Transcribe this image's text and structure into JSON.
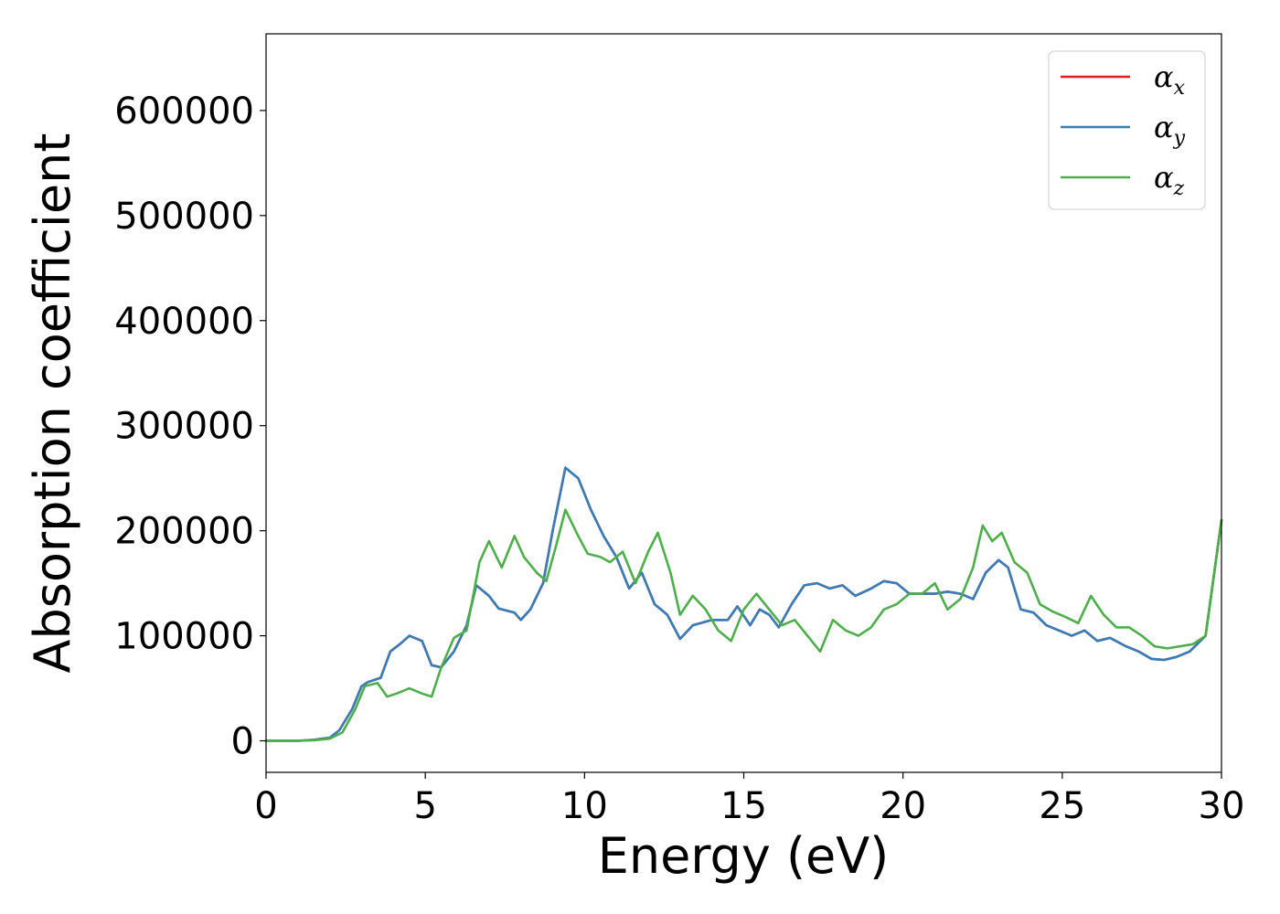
{
  "chart_data": {
    "type": "line",
    "xlabel": "Energy (eV)",
    "ylabel": "Absorption coefficient",
    "xlim": [
      0,
      30
    ],
    "ylim": [
      -30000,
      673000
    ],
    "xticks": [
      0,
      5,
      10,
      15,
      20,
      25,
      30
    ],
    "yticks": [
      0,
      100000,
      200000,
      300000,
      400000,
      500000,
      600000
    ],
    "xtick_labels": [
      "0",
      "5",
      "10",
      "15",
      "20",
      "25",
      "30"
    ],
    "ytick_labels": [
      "0",
      "100000",
      "200000",
      "300000",
      "400000",
      "500000",
      "600000"
    ],
    "grid": false,
    "legend": {
      "position": "top-right",
      "entries": [
        {
          "symbol": "α",
          "subscript": "x"
        },
        {
          "symbol": "α",
          "subscript": "y"
        },
        {
          "symbol": "α",
          "subscript": "z"
        }
      ]
    },
    "series": [
      {
        "name": "αx",
        "color": "#e41a1c",
        "x": [
          0,
          1,
          1.5,
          2,
          2.3,
          2.7,
          3,
          3.2,
          3.6,
          3.9,
          4.2,
          4.5,
          4.9,
          5.2,
          5.5,
          5.9,
          6.3,
          6.6,
          7.0,
          7.3,
          7.8,
          8.0,
          8.3,
          8.7,
          9.0,
          9.4,
          9.8,
          10.2,
          10.6,
          11.0,
          11.4,
          11.8,
          12.2,
          12.6,
          13.0,
          13.4,
          14.0,
          14.5,
          14.8,
          15.2,
          15.5,
          15.8,
          16.1,
          16.5,
          16.9,
          17.3,
          17.7,
          18.1,
          18.5,
          19.0,
          19.4,
          19.8,
          20.2,
          20.6,
          21.0,
          21.4,
          21.8,
          22.2,
          22.6,
          23.0,
          23.3,
          23.7,
          24.1,
          24.5,
          24.9,
          25.3,
          25.7,
          26.1,
          26.5,
          27.0,
          27.4,
          27.8,
          28.2,
          28.6,
          29.0,
          29.5,
          30.0
        ],
        "y": [
          0,
          0,
          1000,
          3000,
          10000,
          30000,
          52000,
          56000,
          60000,
          85000,
          92000,
          100000,
          95000,
          72000,
          70000,
          85000,
          110000,
          148000,
          138000,
          126000,
          122000,
          115000,
          125000,
          150000,
          200000,
          260000,
          250000,
          220000,
          195000,
          175000,
          145000,
          160000,
          130000,
          120000,
          97000,
          110000,
          115000,
          115000,
          128000,
          110000,
          125000,
          120000,
          108000,
          130000,
          148000,
          150000,
          145000,
          148000,
          138000,
          145000,
          152000,
          150000,
          140000,
          140000,
          140000,
          142000,
          140000,
          135000,
          160000,
          172000,
          165000,
          125000,
          122000,
          110000,
          105000,
          100000,
          105000,
          95000,
          98000,
          90000,
          85000,
          78000,
          77000,
          80000,
          85000,
          100000,
          210000
        ]
      },
      {
        "name": "αy",
        "color": "#377eb8",
        "x": [
          0,
          1,
          1.5,
          2,
          2.3,
          2.7,
          3,
          3.2,
          3.6,
          3.9,
          4.2,
          4.5,
          4.9,
          5.2,
          5.5,
          5.9,
          6.3,
          6.6,
          7.0,
          7.3,
          7.8,
          8.0,
          8.3,
          8.7,
          9.0,
          9.4,
          9.8,
          10.2,
          10.6,
          11.0,
          11.4,
          11.8,
          12.2,
          12.6,
          13.0,
          13.4,
          14.0,
          14.5,
          14.8,
          15.2,
          15.5,
          15.8,
          16.1,
          16.5,
          16.9,
          17.3,
          17.7,
          18.1,
          18.5,
          19.0,
          19.4,
          19.8,
          20.2,
          20.6,
          21.0,
          21.4,
          21.8,
          22.2,
          22.6,
          23.0,
          23.3,
          23.7,
          24.1,
          24.5,
          24.9,
          25.3,
          25.7,
          26.1,
          26.5,
          27.0,
          27.4,
          27.8,
          28.2,
          28.6,
          29.0,
          29.5,
          30.0
        ],
        "y": [
          0,
          0,
          1000,
          3000,
          10000,
          30000,
          52000,
          56000,
          60000,
          85000,
          92000,
          100000,
          95000,
          72000,
          70000,
          85000,
          110000,
          148000,
          138000,
          126000,
          122000,
          115000,
          125000,
          150000,
          200000,
          260000,
          250000,
          220000,
          195000,
          175000,
          145000,
          160000,
          130000,
          120000,
          97000,
          110000,
          115000,
          115000,
          128000,
          110000,
          125000,
          120000,
          108000,
          130000,
          148000,
          150000,
          145000,
          148000,
          138000,
          145000,
          152000,
          150000,
          140000,
          140000,
          140000,
          142000,
          140000,
          135000,
          160000,
          172000,
          165000,
          125000,
          122000,
          110000,
          105000,
          100000,
          105000,
          95000,
          98000,
          90000,
          85000,
          78000,
          77000,
          80000,
          85000,
          100000,
          210000
        ]
      },
      {
        "name": "αz",
        "color": "#4daf4a",
        "x": [
          0,
          1,
          1.5,
          2,
          2.4,
          2.8,
          3.1,
          3.5,
          3.8,
          4.1,
          4.5,
          4.9,
          5.2,
          5.5,
          5.9,
          6.3,
          6.7,
          7.0,
          7.4,
          7.8,
          8.1,
          8.5,
          8.8,
          9.1,
          9.4,
          9.8,
          10.1,
          10.5,
          10.8,
          11.2,
          11.6,
          12.0,
          12.3,
          12.7,
          13.0,
          13.4,
          13.8,
          14.2,
          14.6,
          15.0,
          15.4,
          15.8,
          16.2,
          16.6,
          17.0,
          17.4,
          17.8,
          18.2,
          18.6,
          19.0,
          19.4,
          19.8,
          20.2,
          20.6,
          21.0,
          21.4,
          21.8,
          22.2,
          22.5,
          22.8,
          23.1,
          23.5,
          23.9,
          24.3,
          24.7,
          25.1,
          25.5,
          25.9,
          26.3,
          26.7,
          27.1,
          27.5,
          27.9,
          28.3,
          28.7,
          29.1,
          29.5,
          30.0
        ],
        "y": [
          0,
          0,
          500,
          2000,
          8000,
          30000,
          52000,
          55000,
          42000,
          45000,
          50000,
          45000,
          42000,
          70000,
          98000,
          105000,
          170000,
          190000,
          165000,
          195000,
          175000,
          160000,
          152000,
          185000,
          220000,
          195000,
          178000,
          175000,
          170000,
          180000,
          150000,
          180000,
          198000,
          160000,
          120000,
          138000,
          125000,
          105000,
          95000,
          125000,
          140000,
          125000,
          110000,
          115000,
          100000,
          85000,
          115000,
          105000,
          100000,
          108000,
          125000,
          130000,
          140000,
          140000,
          150000,
          125000,
          135000,
          165000,
          205000,
          190000,
          198000,
          170000,
          160000,
          130000,
          123000,
          118000,
          112000,
          138000,
          120000,
          108000,
          108000,
          100000,
          90000,
          88000,
          90000,
          92000,
          100000,
          210000
        ]
      }
    ]
  }
}
